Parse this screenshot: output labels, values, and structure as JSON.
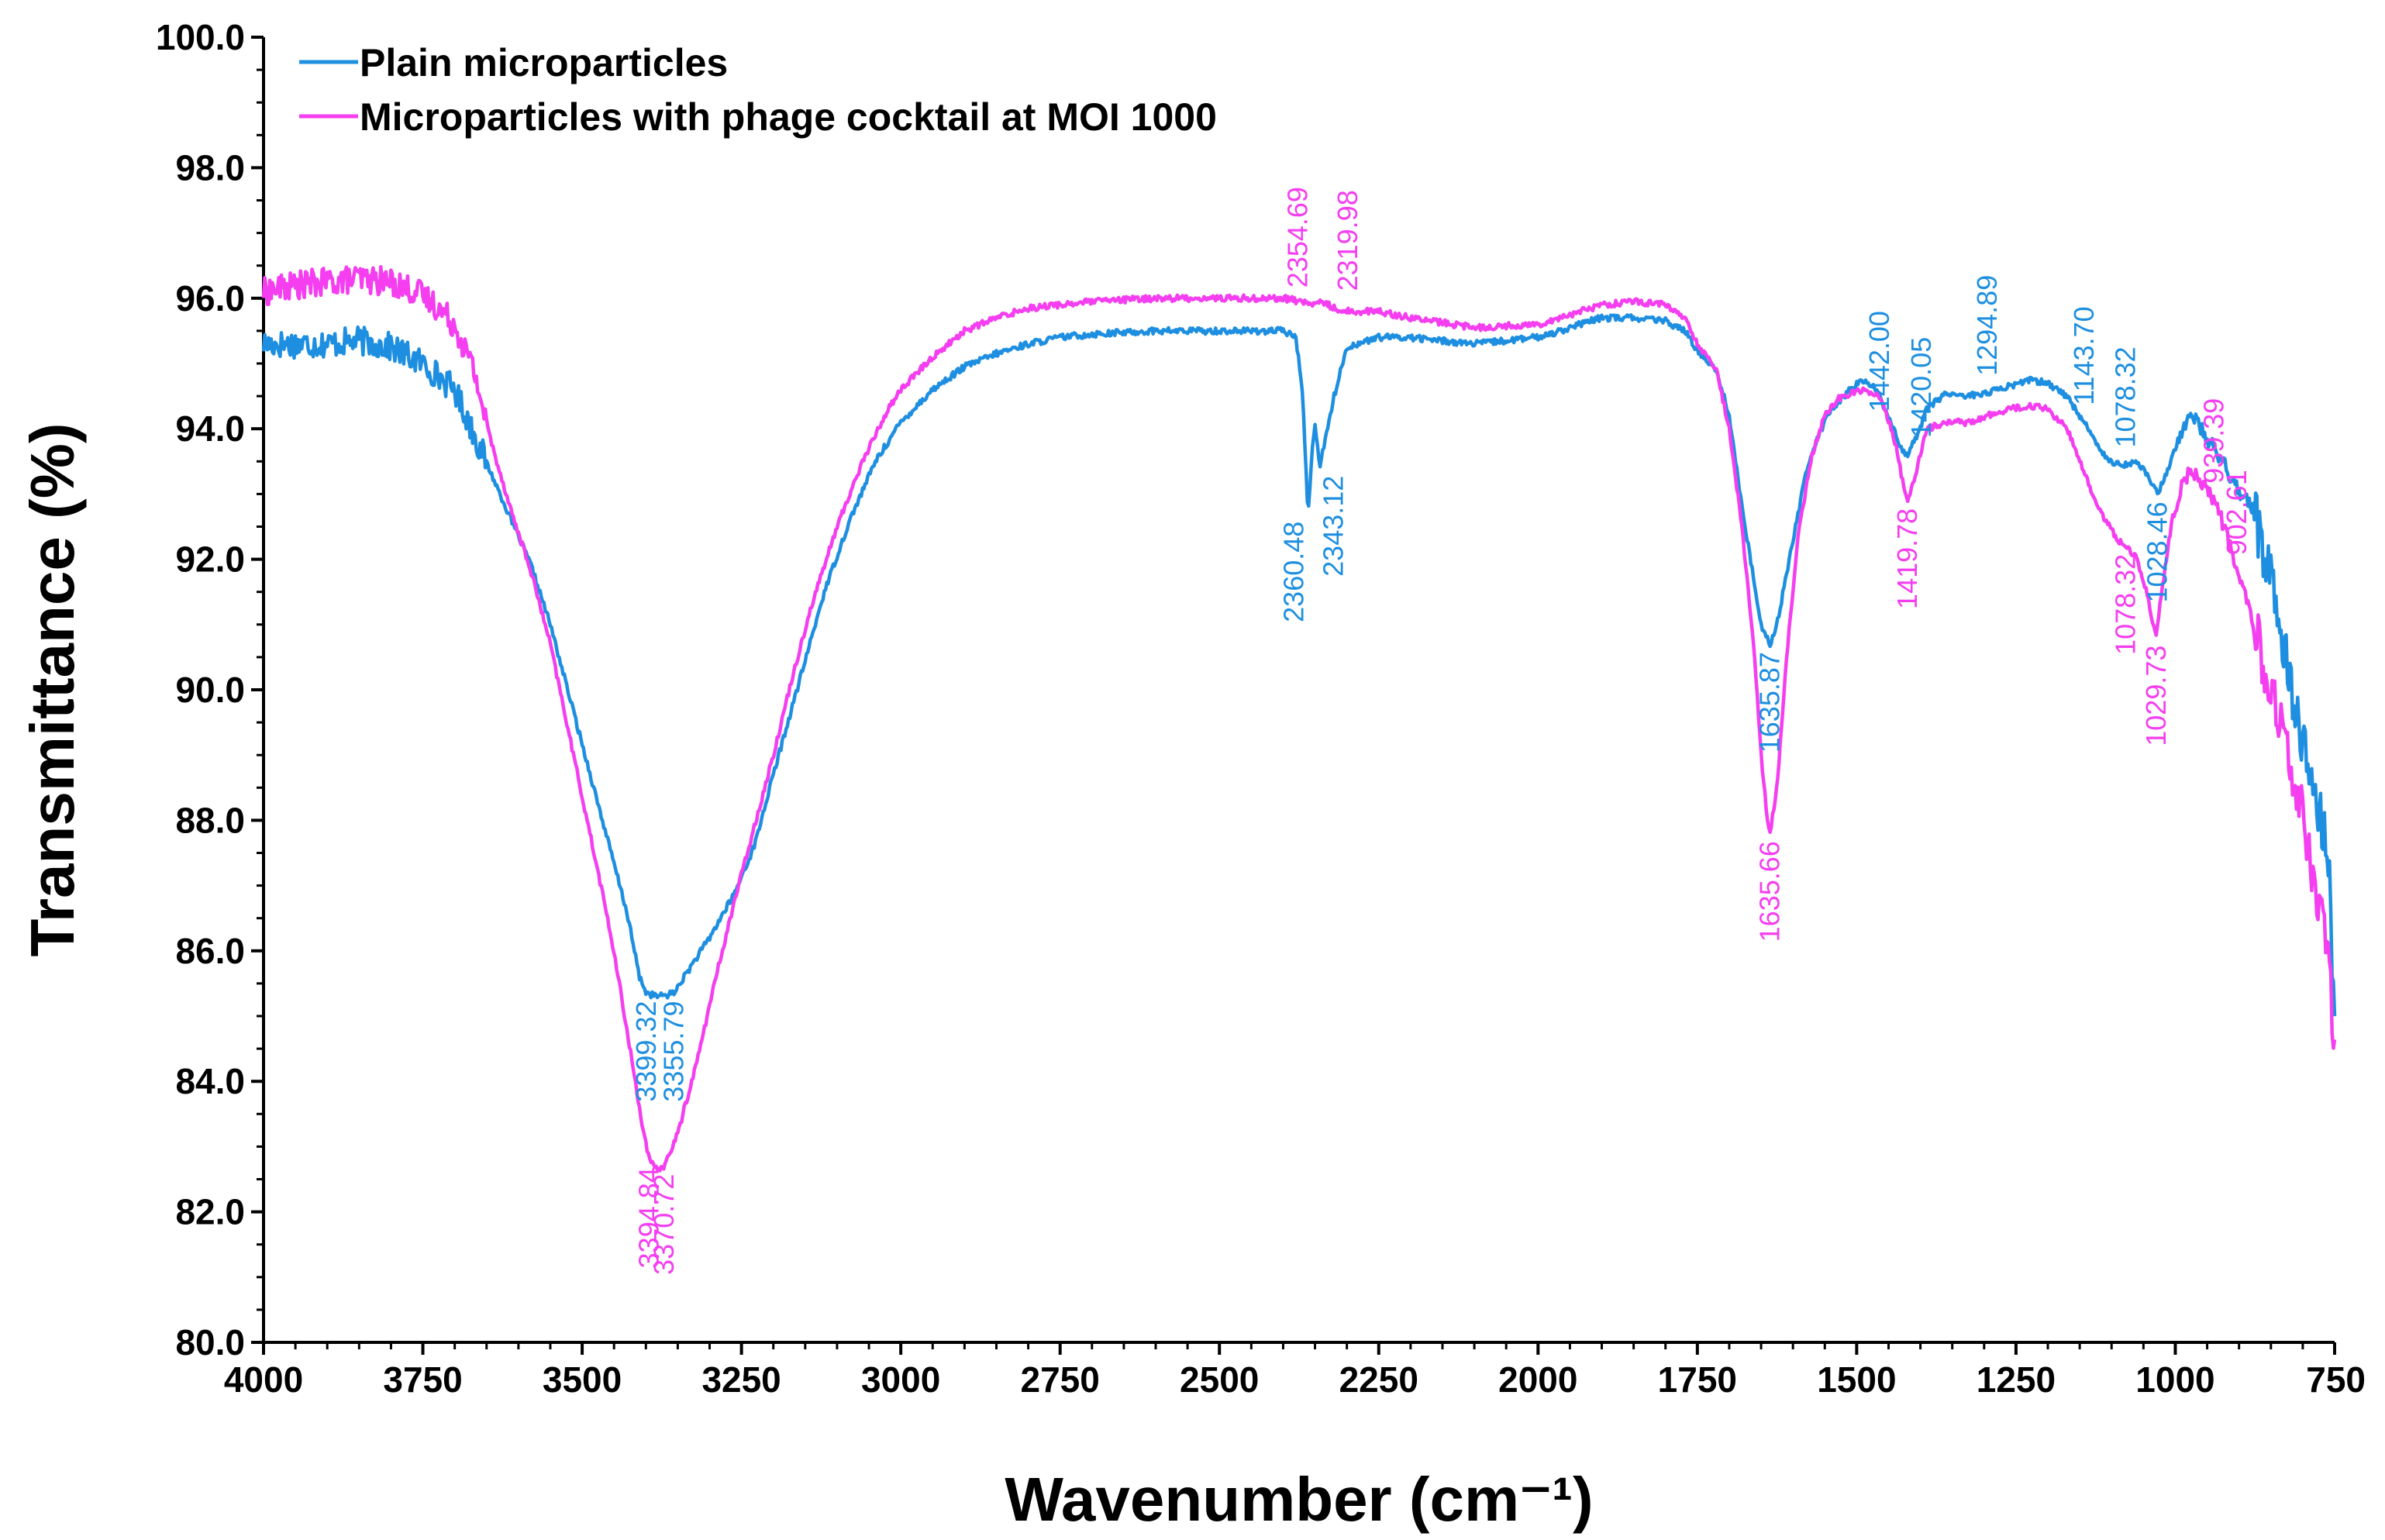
{
  "chart_data": {
    "type": "line",
    "xlabel": "Wavenumber (cm⁻¹)",
    "ylabel": "Transmittance (%)",
    "xlim": [
      4000,
      750
    ],
    "ylim": [
      80,
      100
    ],
    "x_ticks": [
      "4000",
      "3750",
      "3500",
      "3250",
      "3000",
      "2750",
      "2500",
      "2250",
      "2000",
      "1750",
      "1500",
      "1250",
      "1000",
      "750"
    ],
    "y_ticks": [
      "80.0",
      "82.0",
      "84.0",
      "86.0",
      "88.0",
      "90.0",
      "92.0",
      "94.0",
      "96.0",
      "98.0",
      "100.0"
    ],
    "legend_position": "top-left",
    "grid": false,
    "series": [
      {
        "name": "Plain microparticles",
        "color": "#1e8fe0",
        "points": [
          [
            4000,
            95.3
          ],
          [
            3950,
            95.3
          ],
          [
            3900,
            95.3
          ],
          [
            3850,
            95.35
          ],
          [
            3800,
            95.25
          ],
          [
            3750,
            95.0
          ],
          [
            3700,
            94.6
          ],
          [
            3660,
            93.7
          ],
          [
            3620,
            92.8
          ],
          [
            3580,
            91.9
          ],
          [
            3550,
            91.0
          ],
          [
            3520,
            89.9
          ],
          [
            3490,
            88.8
          ],
          [
            3460,
            87.7
          ],
          [
            3430,
            86.6
          ],
          [
            3410,
            85.6
          ],
          [
            3399,
            85.35
          ],
          [
            3380,
            85.3
          ],
          [
            3356,
            85.35
          ],
          [
            3340,
            85.6
          ],
          [
            3300,
            86.2
          ],
          [
            3260,
            86.9
          ],
          [
            3230,
            87.6
          ],
          [
            3200,
            88.7
          ],
          [
            3160,
            90.1
          ],
          [
            3120,
            91.5
          ],
          [
            3080,
            92.6
          ],
          [
            3040,
            93.5
          ],
          [
            3000,
            94.1
          ],
          [
            2950,
            94.6
          ],
          [
            2900,
            94.95
          ],
          [
            2850,
            95.15
          ],
          [
            2800,
            95.3
          ],
          [
            2750,
            95.4
          ],
          [
            2700,
            95.45
          ],
          [
            2600,
            95.5
          ],
          [
            2500,
            95.5
          ],
          [
            2400,
            95.5
          ],
          [
            2380,
            95.4
          ],
          [
            2370,
            94.6
          ],
          [
            2361,
            92.7
          ],
          [
            2355,
            93.6
          ],
          [
            2350,
            94.1
          ],
          [
            2343,
            93.4
          ],
          [
            2335,
            93.8
          ],
          [
            2320,
            94.5
          ],
          [
            2300,
            95.25
          ],
          [
            2250,
            95.4
          ],
          [
            2200,
            95.4
          ],
          [
            2100,
            95.3
          ],
          [
            2000,
            95.4
          ],
          [
            1950,
            95.55
          ],
          [
            1900,
            95.7
          ],
          [
            1850,
            95.7
          ],
          [
            1800,
            95.65
          ],
          [
            1770,
            95.5
          ],
          [
            1750,
            95.2
          ],
          [
            1720,
            94.9
          ],
          [
            1700,
            94.2
          ],
          [
            1680,
            92.8
          ],
          [
            1660,
            91.6
          ],
          [
            1650,
            91.0
          ],
          [
            1636,
            90.7
          ],
          [
            1625,
            91.0
          ],
          [
            1600,
            92.3
          ],
          [
            1580,
            93.3
          ],
          [
            1560,
            93.9
          ],
          [
            1540,
            94.3
          ],
          [
            1510,
            94.6
          ],
          [
            1490,
            94.75
          ],
          [
            1470,
            94.6
          ],
          [
            1455,
            94.3
          ],
          [
            1442,
            94.0
          ],
          [
            1430,
            93.7
          ],
          [
            1420,
            93.6
          ],
          [
            1405,
            93.9
          ],
          [
            1390,
            94.3
          ],
          [
            1360,
            94.55
          ],
          [
            1330,
            94.5
          ],
          [
            1295,
            94.55
          ],
          [
            1260,
            94.65
          ],
          [
            1230,
            94.75
          ],
          [
            1200,
            94.7
          ],
          [
            1170,
            94.5
          ],
          [
            1143,
            94.1
          ],
          [
            1120,
            93.7
          ],
          [
            1100,
            93.5
          ],
          [
            1078,
            93.45
          ],
          [
            1060,
            93.5
          ],
          [
            1045,
            93.3
          ],
          [
            1028,
            93.0
          ],
          [
            1015,
            93.3
          ],
          [
            1000,
            93.7
          ],
          [
            985,
            94.1
          ],
          [
            970,
            94.2
          ],
          [
            955,
            93.9
          ],
          [
            939,
            93.7
          ],
          [
            920,
            93.4
          ],
          [
            903,
            93.1
          ],
          [
            880,
            92.8
          ],
          [
            860,
            92.1
          ],
          [
            840,
            91.3
          ],
          [
            820,
            90.2
          ],
          [
            800,
            89.2
          ],
          [
            780,
            88.3
          ],
          [
            760,
            87.5
          ],
          [
            750,
            84.8
          ]
        ]
      },
      {
        "name": "Microparticles with phage cocktail at MOI 1000",
        "color": "#f43ef0",
        "points": [
          [
            4000,
            96.1
          ],
          [
            3950,
            96.2
          ],
          [
            3900,
            96.25
          ],
          [
            3850,
            96.3
          ],
          [
            3800,
            96.25
          ],
          [
            3760,
            96.1
          ],
          [
            3730,
            95.9
          ],
          [
            3700,
            95.6
          ],
          [
            3670,
            94.9
          ],
          [
            3640,
            93.7
          ],
          [
            3610,
            92.7
          ],
          [
            3580,
            91.8
          ],
          [
            3550,
            90.7
          ],
          [
            3520,
            89.3
          ],
          [
            3490,
            87.9
          ],
          [
            3460,
            86.5
          ],
          [
            3440,
            85.4
          ],
          [
            3420,
            84.2
          ],
          [
            3405,
            83.3
          ],
          [
            3395,
            82.8
          ],
          [
            3385,
            82.65
          ],
          [
            3371,
            82.7
          ],
          [
            3350,
            83.2
          ],
          [
            3320,
            84.3
          ],
          [
            3290,
            85.6
          ],
          [
            3260,
            86.8
          ],
          [
            3230,
            87.9
          ],
          [
            3200,
            89.0
          ],
          [
            3170,
            90.2
          ],
          [
            3140,
            91.3
          ],
          [
            3100,
            92.5
          ],
          [
            3060,
            93.5
          ],
          [
            3020,
            94.3
          ],
          [
            3000,
            94.6
          ],
          [
            2950,
            95.1
          ],
          [
            2900,
            95.5
          ],
          [
            2850,
            95.7
          ],
          [
            2800,
            95.85
          ],
          [
            2750,
            95.9
          ],
          [
            2700,
            95.95
          ],
          [
            2600,
            96.0
          ],
          [
            2500,
            96.0
          ],
          [
            2400,
            96.0
          ],
          [
            2370,
            95.95
          ],
          [
            2355,
            95.9
          ],
          [
            2340,
            95.95
          ],
          [
            2320,
            95.85
          ],
          [
            2300,
            95.8
          ],
          [
            2250,
            95.8
          ],
          [
            2200,
            95.7
          ],
          [
            2100,
            95.55
          ],
          [
            2000,
            95.6
          ],
          [
            1950,
            95.75
          ],
          [
            1900,
            95.9
          ],
          [
            1850,
            95.95
          ],
          [
            1800,
            95.9
          ],
          [
            1770,
            95.7
          ],
          [
            1750,
            95.3
          ],
          [
            1720,
            94.9
          ],
          [
            1700,
            94.0
          ],
          [
            1680,
            92.5
          ],
          [
            1660,
            90.5
          ],
          [
            1650,
            89.0
          ],
          [
            1640,
            88.0
          ],
          [
            1636,
            87.8
          ],
          [
            1625,
            88.5
          ],
          [
            1610,
            90.5
          ],
          [
            1590,
            92.5
          ],
          [
            1570,
            93.6
          ],
          [
            1550,
            94.2
          ],
          [
            1530,
            94.45
          ],
          [
            1510,
            94.55
          ],
          [
            1490,
            94.6
          ],
          [
            1470,
            94.55
          ],
          [
            1455,
            94.3
          ],
          [
            1440,
            93.8
          ],
          [
            1430,
            93.3
          ],
          [
            1420,
            92.9
          ],
          [
            1405,
            93.4
          ],
          [
            1390,
            94.0
          ],
          [
            1360,
            94.1
          ],
          [
            1320,
            94.1
          ],
          [
            1295,
            94.2
          ],
          [
            1260,
            94.3
          ],
          [
            1230,
            94.35
          ],
          [
            1200,
            94.3
          ],
          [
            1170,
            94.0
          ],
          [
            1150,
            93.5
          ],
          [
            1130,
            93.0
          ],
          [
            1110,
            92.6
          ],
          [
            1090,
            92.3
          ],
          [
            1078,
            92.2
          ],
          [
            1060,
            92.0
          ],
          [
            1045,
            91.5
          ],
          [
            1035,
            91.0
          ],
          [
            1030,
            90.8
          ],
          [
            1020,
            91.6
          ],
          [
            1005,
            92.6
          ],
          [
            990,
            93.1
          ],
          [
            975,
            93.4
          ],
          [
            960,
            93.2
          ],
          [
            939,
            92.9
          ],
          [
            920,
            92.4
          ],
          [
            903,
            91.8
          ],
          [
            880,
            91.1
          ],
          [
            860,
            90.4
          ],
          [
            840,
            89.6
          ],
          [
            820,
            88.8
          ],
          [
            800,
            88.0
          ],
          [
            780,
            87.0
          ],
          [
            760,
            86.0
          ],
          [
            750,
            84.6
          ]
        ]
      }
    ],
    "annotations": [
      {
        "label": "3399.32",
        "x": 3399,
        "series": 0,
        "side": "below"
      },
      {
        "label": "3355.79",
        "x": 3356,
        "series": 0,
        "side": "below"
      },
      {
        "label": "3394.84",
        "x": 3395,
        "series": 1,
        "side": "below"
      },
      {
        "label": "3370.72",
        "x": 3371,
        "series": 1,
        "side": "below"
      },
      {
        "label": "2360.48",
        "x": 2361,
        "series": 0,
        "side": "below"
      },
      {
        "label": "2343.12",
        "x": 2343,
        "series": 0,
        "side": "below"
      },
      {
        "label": "2354.69",
        "x": 2355,
        "series": 1,
        "side": "above"
      },
      {
        "label": "2319.98",
        "x": 2320,
        "series": 1,
        "side": "above"
      },
      {
        "label": "1635.87",
        "x": 1636,
        "series": 0,
        "side": "below"
      },
      {
        "label": "1635.66",
        "x": 1636,
        "series": 1,
        "side": "below"
      },
      {
        "label": "1442.00",
        "x": 1442,
        "series": 0,
        "side": "above"
      },
      {
        "label": "1420.05",
        "x": 1420,
        "series": 0,
        "side": "above"
      },
      {
        "label": "1419.78",
        "x": 1420,
        "series": 1,
        "side": "below"
      },
      {
        "label": "1294.89",
        "x": 1295,
        "series": 0,
        "side": "above"
      },
      {
        "label": "1143.70",
        "x": 1143,
        "series": 0,
        "side": "above"
      },
      {
        "label": "1078.32",
        "x": 1078,
        "series": 0,
        "side": "above"
      },
      {
        "label": "1078.32",
        "x": 1078,
        "series": 1,
        "side": "below"
      },
      {
        "label": "1029.73",
        "x": 1030,
        "series": 1,
        "side": "below"
      },
      {
        "label": "1028.46",
        "x": 1028,
        "series": 0,
        "side": "below"
      },
      {
        "label": "939.39",
        "x": 939,
        "series": 1,
        "side": "above"
      },
      {
        "label": "902.61",
        "x": 903,
        "series": 1,
        "side": "above"
      }
    ]
  }
}
